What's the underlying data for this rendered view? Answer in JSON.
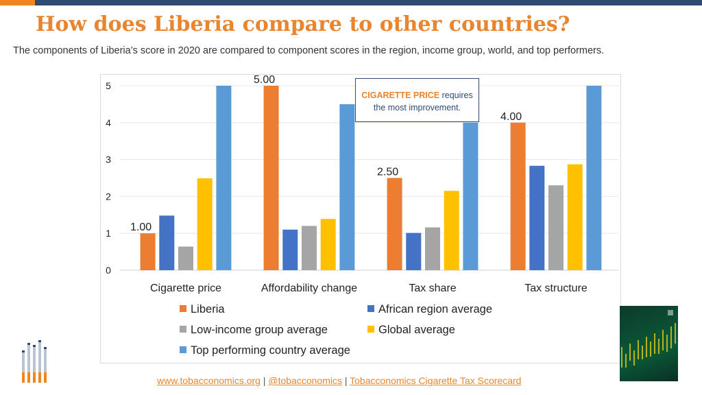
{
  "header": {
    "title": "How does Liberia compare to other countries?",
    "subtitle": "The components of Liberia’s score in 2020 are compared to component scores in the region, income group, world, and top performers."
  },
  "callout": {
    "highlight": "CIGARETTE PRICE",
    "text_line1": " requires",
    "text_line2": "the most improvement."
  },
  "footer": {
    "link1": "www.tobacconomics.org",
    "sep1": " | ",
    "link2": "@tobacconomics",
    "sep2": " | ",
    "link3": "Tobacconomics Cigarette Tax Scorecard"
  },
  "colors": {
    "accent_orange": "#e8852e",
    "navy": "#2f4b72"
  },
  "chart_data": {
    "type": "bar",
    "categories": [
      "Cigarette price",
      "Affordability change",
      "Tax share",
      "Tax structure"
    ],
    "ylim": [
      0,
      5
    ],
    "yticks": [
      0,
      1,
      2,
      3,
      4,
      5
    ],
    "grid": true,
    "legend_position": "bottom",
    "series": [
      {
        "name": "Liberia",
        "color": "#ed7d31",
        "values": [
          1.0,
          5.0,
          2.5,
          4.0
        ],
        "labels": [
          "1.00",
          "5.00",
          "2.50",
          "4.00"
        ]
      },
      {
        "name": "African region average",
        "color": "#4472c4",
        "values": [
          1.48,
          1.1,
          1.01,
          2.83
        ]
      },
      {
        "name": "Low-income group average",
        "color": "#a5a5a5",
        "values": [
          0.64,
          1.2,
          1.16,
          2.3
        ]
      },
      {
        "name": "Global average",
        "color": "#ffc000",
        "values": [
          2.49,
          1.39,
          2.15,
          2.87
        ]
      },
      {
        "name": "Top performing country average",
        "color": "#5b9bd5",
        "values": [
          5.0,
          4.5,
          4.0,
          5.0
        ]
      }
    ]
  }
}
